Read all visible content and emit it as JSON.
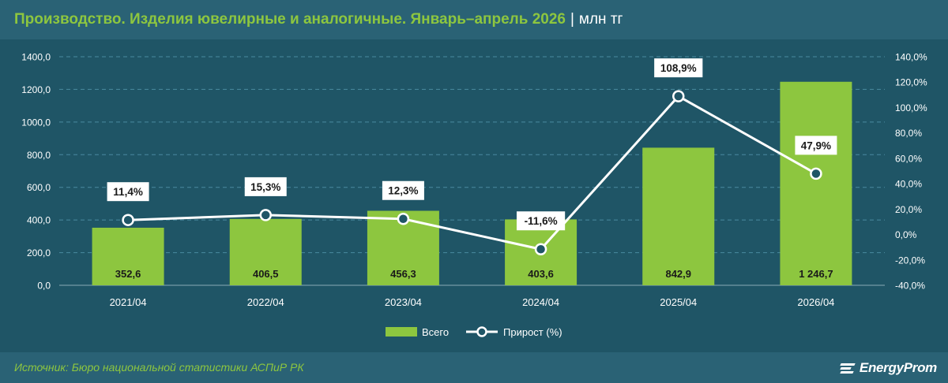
{
  "header": {
    "title": "Производство. Изделия ювелирные и аналогичные. Январь–апрель 2026",
    "separator": "|",
    "unit": "млн тг"
  },
  "footer": {
    "source": "Источник: Бюро национальной статистики АСПиР РК",
    "brand": "EnergyProm",
    "brand_icon": "energyprom-logo-icon"
  },
  "colors": {
    "background": "#1f5566",
    "panel": "#2a6275",
    "bar": "#8dc63f",
    "line": "#ffffff",
    "accent_text": "#8dc63f"
  },
  "chart_data": {
    "type": "bar",
    "categories": [
      "2021/04",
      "2022/04",
      "2023/04",
      "2024/04",
      "2025/04",
      "2026/04"
    ],
    "series": [
      {
        "name": "Всего",
        "type": "bar",
        "axis": "left",
        "values": [
          352.6,
          406.5,
          456.3,
          403.6,
          842.9,
          1246.7
        ],
        "labels": [
          "352,6",
          "406,5",
          "456,3",
          "403,6",
          "842,9",
          "1 246,7"
        ]
      },
      {
        "name": "Прирост (%)",
        "type": "line",
        "axis": "right",
        "values": [
          11.4,
          15.3,
          12.3,
          -11.6,
          108.9,
          47.9
        ],
        "labels": [
          "11,4%",
          "15,3%",
          "12,3%",
          "-11,6%",
          "108,9%",
          "47,9%"
        ]
      }
    ],
    "y_left": {
      "range": [
        0,
        1400
      ],
      "ticks": [
        "0,0",
        "200,0",
        "400,0",
        "600,0",
        "800,0",
        "1000,0",
        "1200,0",
        "1400,0"
      ]
    },
    "y_right": {
      "range": [
        -40,
        140
      ],
      "ticks": [
        "-40,0%",
        "-20,0%",
        "0,0%",
        "20,0%",
        "40,0%",
        "60,0%",
        "80,0%",
        "100,0%",
        "120,0%",
        "140,0%"
      ]
    },
    "grid": true,
    "legend": "bottom-center"
  }
}
